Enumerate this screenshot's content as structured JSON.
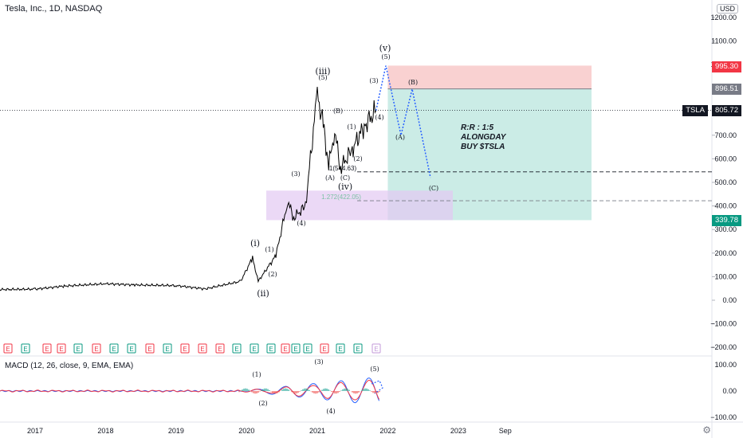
{
  "header": {
    "symbol_title": "Tesla, Inc., 1D, NASDAQ",
    "currency": "USD"
  },
  "badges": {
    "stop": "995.30",
    "entry": "896.51",
    "last_symbol": "TSLA",
    "last_price": "805.72",
    "target": "339.78"
  },
  "annotation": {
    "text1": "R:R : 1:5",
    "text2": "ALONGDAY",
    "text3": "BUY $TSLA"
  },
  "fib_labels": {
    "f1": "1(544.63)",
    "f2": "1.272(422.05)"
  },
  "macd": {
    "title": "MACD (12, 26, close, 9, EMA, EMA)",
    "ticks": [
      "100.00",
      "0.00",
      "−100.00"
    ]
  },
  "colors": {
    "stop_zone": "#f7c5c6",
    "target_zone": "#b9e6dd",
    "fib_zone": "#e2c9f2",
    "forecast": "#2962ff",
    "price": "#000000",
    "earnings_red": "#f23645",
    "earnings_green": "#089981"
  },
  "chart_data": {
    "type": "line",
    "title": "Tesla, Inc., 1D, NASDAQ",
    "ylim": [
      -200,
      1200
    ],
    "y_ticks": [
      "1200.00",
      "1100.00",
      "1000.00",
      "900.00",
      "800.00",
      "700.00",
      "600.00",
      "500.00",
      "400.00",
      "300.00",
      "200.00",
      "100.00",
      "0.00",
      "−100.00",
      "−200.00"
    ],
    "x_ticks": [
      "2017",
      "2018",
      "2019",
      "2020",
      "2021",
      "2022",
      "2023",
      "Sep"
    ],
    "series": [
      {
        "values_note_dates": [
          "2016-06",
          "2017-01",
          "2017-06",
          "2018-01",
          "2018-06",
          "2019-01",
          "2019-06",
          "2019-12",
          "2020-02",
          "2020-03",
          "2020-06",
          "2020-08",
          "2020-09",
          "2020-11",
          "2021-01",
          "2021-02",
          "2021-03",
          "2021-04",
          "2021-05",
          "2021-07",
          "2021-09",
          "2021-11"
        ],
        "values": [
          45,
          47,
          60,
          70,
          65,
          62,
          48,
          80,
          180,
          80,
          190,
          420,
          350,
          400,
          880,
          740,
          570,
          720,
          560,
          640,
          740,
          805
        ]
      }
    ],
    "forecast": {
      "dates": [
        "2021-11",
        "2021-12",
        "2022-02",
        "2022-04",
        "2022-08"
      ],
      "values": [
        805,
        995,
        700,
        896,
        520
      ]
    },
    "wave_labels": [
      "(v)",
      "(5)",
      "(iii)",
      "(5)",
      "(3)",
      "(B)",
      "(1)",
      "(2)",
      "(4)",
      "(A)",
      "(C)",
      "(iv)",
      "(3)",
      "(4)",
      "(i)",
      "(1)",
      "(2)",
      "(ii)",
      "(A)",
      "(B)",
      "(C)"
    ],
    "levels": {
      "stop": 995.3,
      "entry": 896.51,
      "target": 339.78,
      "last": 805.72,
      "fib_1": 544.63,
      "fib_1272": 422.05
    },
    "macd_labels": [
      "(1)",
      "(2)",
      "(3)",
      "(4)",
      "(5)"
    ]
  }
}
